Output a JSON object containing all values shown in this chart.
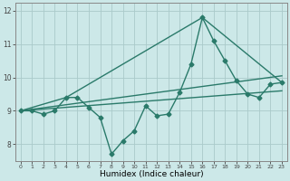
{
  "title": "",
  "xlabel": "Humidex (Indice chaleur)",
  "ylabel": "",
  "background_color": "#cce8e8",
  "grid_color": "#aacaca",
  "line_color": "#2a7a6a",
  "xlim": [
    -0.5,
    23.5
  ],
  "ylim": [
    7.5,
    12.25
  ],
  "yticks": [
    8,
    9,
    10,
    11,
    12
  ],
  "xticks": [
    0,
    1,
    2,
    3,
    4,
    5,
    6,
    7,
    8,
    9,
    10,
    11,
    12,
    13,
    14,
    15,
    16,
    17,
    18,
    19,
    20,
    21,
    22,
    23
  ],
  "series": [
    {
      "x": [
        0,
        1,
        2,
        3,
        4,
        5,
        6,
        7,
        8,
        9,
        10,
        11,
        12,
        13,
        14,
        15,
        16,
        17,
        18,
        19,
        20,
        21,
        22,
        23
      ],
      "y": [
        9.0,
        9.0,
        8.9,
        9.0,
        9.4,
        9.4,
        9.1,
        8.8,
        7.7,
        8.1,
        8.4,
        9.15,
        8.85,
        8.9,
        9.55,
        10.4,
        11.8,
        11.1,
        10.5,
        9.9,
        9.5,
        9.4,
        9.8,
        9.85
      ],
      "marker": "D",
      "markersize": 2.5,
      "linewidth": 1.0
    },
    {
      "x": [
        0,
        4,
        16,
        23
      ],
      "y": [
        9.0,
        9.4,
        11.8,
        9.85
      ],
      "marker": null,
      "linewidth": 1.0
    },
    {
      "x": [
        0,
        23
      ],
      "y": [
        9.0,
        9.6
      ],
      "marker": null,
      "linewidth": 1.0
    },
    {
      "x": [
        0,
        23
      ],
      "y": [
        9.0,
        10.05
      ],
      "marker": null,
      "linewidth": 1.0
    }
  ]
}
